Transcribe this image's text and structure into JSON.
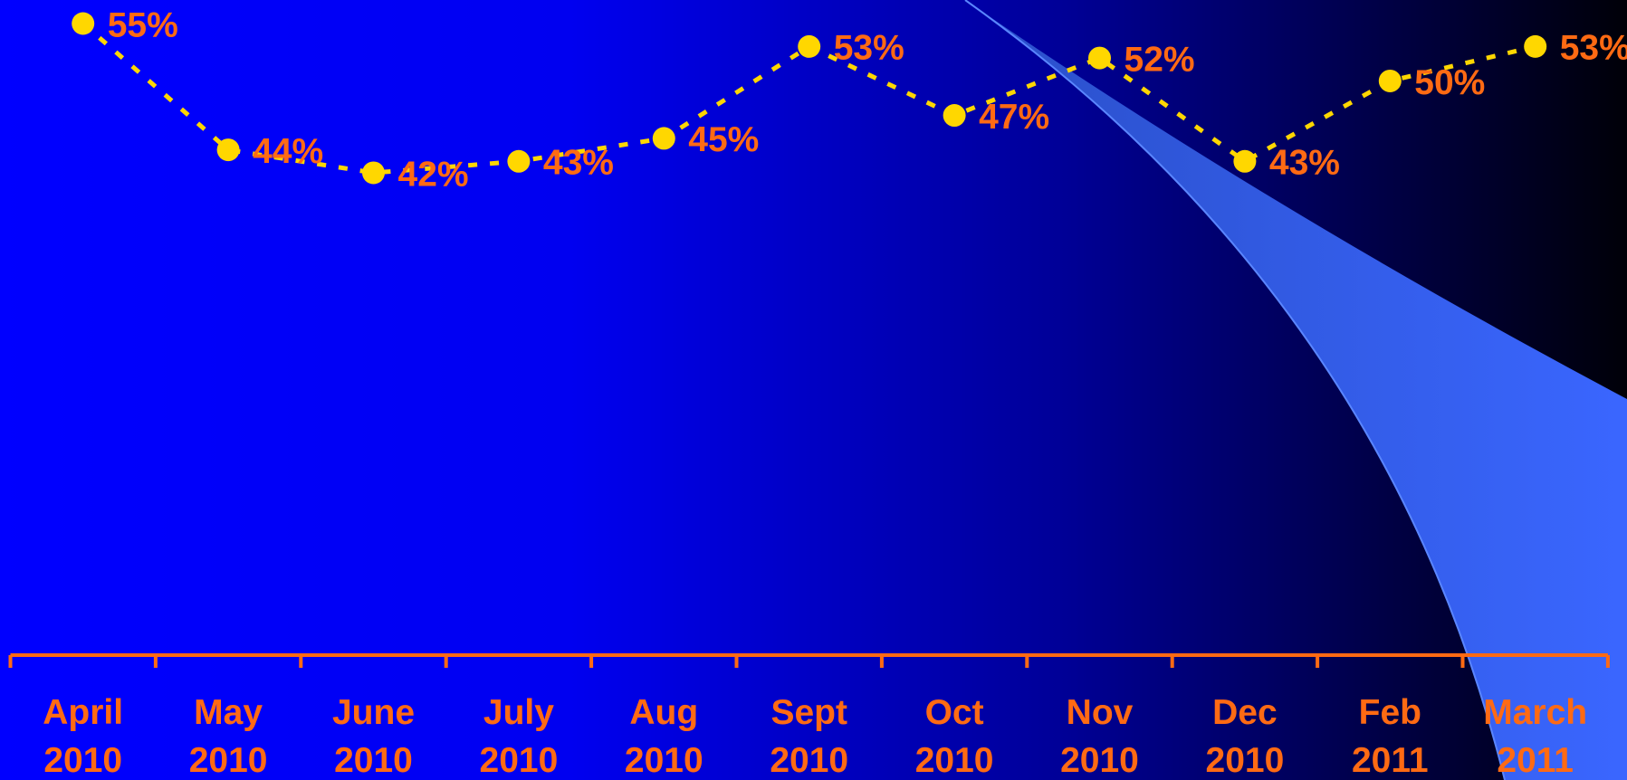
{
  "chart_data": {
    "type": "line",
    "categories": [
      "April 2010",
      "May 2010",
      "June 2010",
      "July 2010",
      "Aug 2010",
      "Sept 2010",
      "Oct 2010",
      "Nov 2010",
      "Dec 2010",
      "Feb 2011",
      "March 2011"
    ],
    "series": [
      {
        "color": "#ffd700",
        "values": [
          55,
          44,
          42,
          43,
          45,
          53,
          47,
          52,
          43,
          50,
          53
        ],
        "value_labels": [
          "55%",
          "44%",
          "42%",
          "43%",
          "45%",
          "53%",
          "47%",
          "52%",
          "43%",
          "50%",
          "53%"
        ]
      }
    ],
    "ylim": [
      0,
      55
    ],
    "label_color": "#ff6a13"
  }
}
